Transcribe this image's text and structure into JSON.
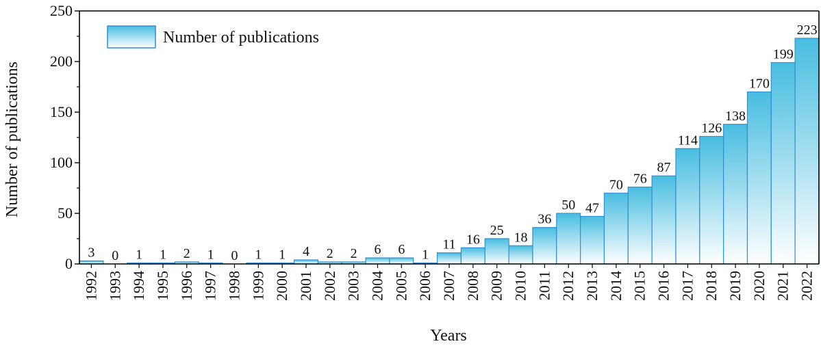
{
  "chart_data": {
    "type": "bar",
    "categories": [
      "1992",
      "1993",
      "1994",
      "1995",
      "1996",
      "1997",
      "1998",
      "1999",
      "2000",
      "2001",
      "2002",
      "2003",
      "2004",
      "2005",
      "2006",
      "2007",
      "2008",
      "2009",
      "2010",
      "2011",
      "2012",
      "2013",
      "2014",
      "2015",
      "2016",
      "2017",
      "2018",
      "2019",
      "2020",
      "2021",
      "2022"
    ],
    "series": [
      {
        "name": "Number of publications",
        "values": [
          3,
          0,
          1,
          1,
          2,
          1,
          0,
          1,
          1,
          4,
          2,
          2,
          6,
          6,
          1,
          11,
          16,
          25,
          18,
          36,
          50,
          47,
          70,
          76,
          87,
          114,
          126,
          138,
          170,
          199,
          223
        ]
      }
    ],
    "title": "",
    "xlabel": "Years",
    "ylabel": "Number of publications",
    "ylim": [
      0,
      250
    ],
    "yticks": [
      "0",
      "50",
      "100",
      "150",
      "200",
      "250"
    ],
    "grid": false,
    "legend_position": "top-left",
    "colors": {
      "bar_top": "#48bde0",
      "bar_bottom": "#ffffff",
      "bar_edge": "#2f8fd1",
      "axis": "#000000"
    }
  }
}
